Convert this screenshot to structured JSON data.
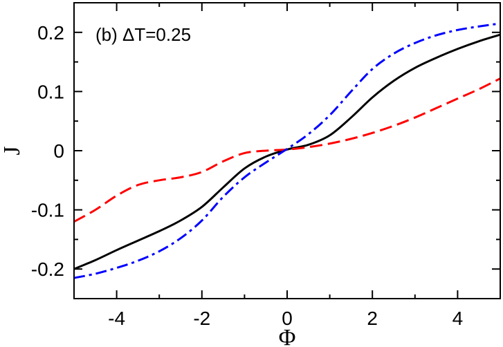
{
  "chart_data": {
    "type": "line",
    "annotation": "(b)  ΔT=0.25",
    "xlabel": "Φ",
    "ylabel": "J",
    "xlim": [
      -5,
      5
    ],
    "ylim": [
      -0.25,
      0.25
    ],
    "x_ticks": [
      -4,
      -2,
      0,
      2,
      4
    ],
    "x_tick_labels": [
      "-4",
      "-2",
      "0",
      "2",
      "4"
    ],
    "y_ticks": [
      -0.2,
      -0.1,
      0,
      0.1,
      0.2
    ],
    "y_tick_labels": [
      "-0.2",
      "-0.1",
      "0",
      "0.1",
      "0.2"
    ],
    "grid": false,
    "series": [
      {
        "color": "#000000",
        "style": "solid",
        "x": [
          -5,
          -4.5,
          -4,
          -3.5,
          -3,
          -2.5,
          -2,
          -1.5,
          -1,
          -0.5,
          0,
          0.5,
          1,
          1.5,
          2,
          2.5,
          3,
          3.5,
          4,
          4.5,
          5
        ],
        "y": [
          -0.2,
          -0.185,
          -0.168,
          -0.152,
          -0.136,
          -0.118,
          -0.095,
          -0.062,
          -0.03,
          -0.01,
          0.002,
          0.01,
          0.026,
          0.056,
          0.09,
          0.118,
          0.14,
          0.157,
          0.172,
          0.185,
          0.196
        ]
      },
      {
        "color": "#ff0000",
        "style": "dashed",
        "x": [
          -5,
          -4.5,
          -4,
          -3.5,
          -3,
          -2.5,
          -2,
          -1.5,
          -1,
          -0.5,
          0,
          0.5,
          1,
          1.5,
          2,
          2.5,
          3,
          3.5,
          4,
          4.5,
          5
        ],
        "y": [
          -0.12,
          -0.1,
          -0.076,
          -0.058,
          -0.05,
          -0.045,
          -0.036,
          -0.018,
          -0.004,
          0,
          0.002,
          0.006,
          0.012,
          0.02,
          0.03,
          0.042,
          0.056,
          0.072,
          0.088,
          0.104,
          0.122
        ]
      },
      {
        "color": "#0000ff",
        "style": "dashdot",
        "x": [
          -5,
          -4.5,
          -4,
          -3.5,
          -3,
          -2.5,
          -2,
          -1.5,
          -1,
          -0.5,
          0,
          0.5,
          1,
          1.5,
          2,
          2.5,
          3,
          3.5,
          4,
          4.5,
          5
        ],
        "y": [
          -0.215,
          -0.208,
          -0.198,
          -0.186,
          -0.17,
          -0.148,
          -0.118,
          -0.078,
          -0.045,
          -0.02,
          0.003,
          0.028,
          0.06,
          0.1,
          0.138,
          0.164,
          0.182,
          0.195,
          0.204,
          0.21,
          0.215
        ]
      }
    ]
  }
}
